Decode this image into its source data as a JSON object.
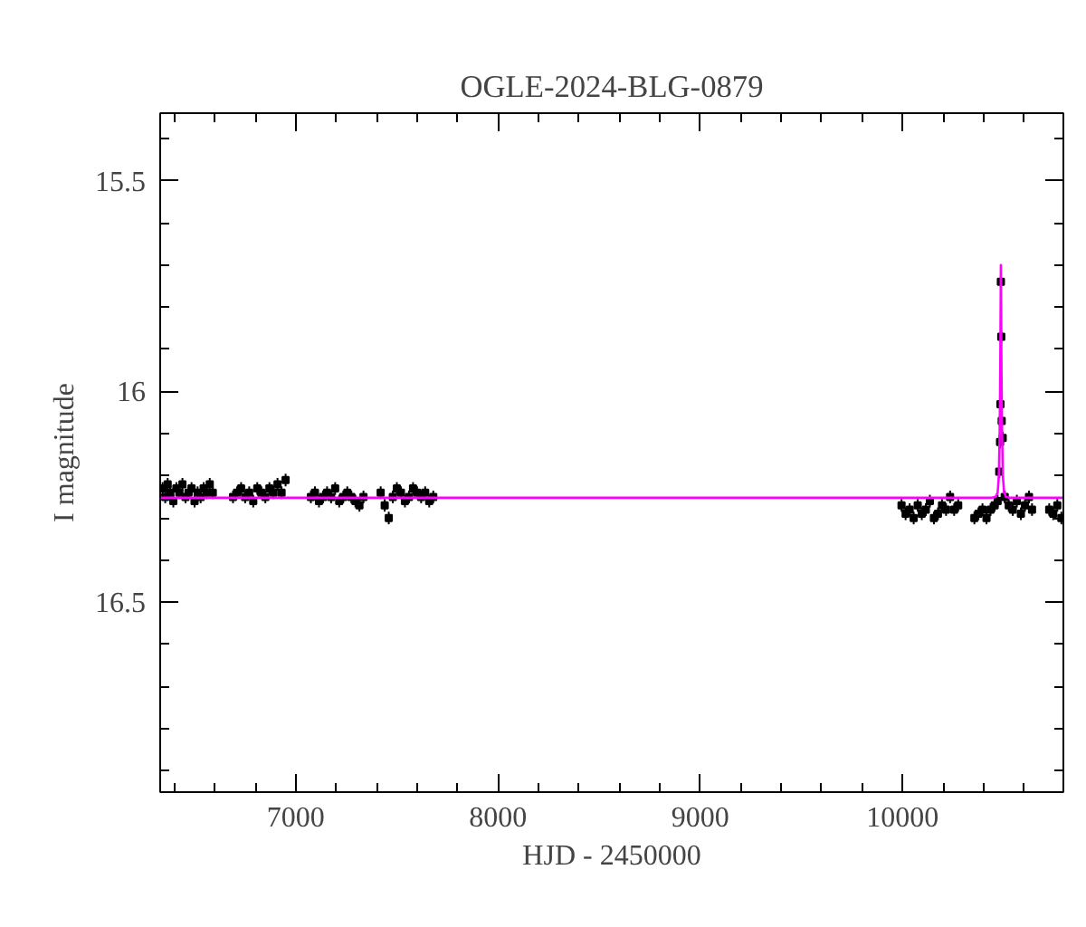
{
  "chart_data": {
    "type": "scatter",
    "title": "OGLE-2024-BLG-0879",
    "xlabel": "HJD - 2450000",
    "ylabel": "I magnitude",
    "xlim": [
      6330,
      10795
    ],
    "ylim": [
      16.95,
      15.34
    ],
    "xticks": [
      {
        "value": 6400,
        "label": null
      },
      {
        "value": 6600,
        "label": null
      },
      {
        "value": 6800,
        "label": null
      },
      7000,
      {
        "value": 7200,
        "label": null
      },
      {
        "value": 7400,
        "label": null
      },
      {
        "value": 7600,
        "label": null
      },
      {
        "value": 7800,
        "label": null
      },
      8000,
      {
        "value": 8200,
        "label": null
      },
      {
        "value": 8400,
        "label": null
      },
      {
        "value": 8600,
        "label": null
      },
      {
        "value": 8800,
        "label": null
      },
      9000,
      {
        "value": 9200,
        "label": null
      },
      {
        "value": 9400,
        "label": null
      },
      {
        "value": 9600,
        "label": null
      },
      {
        "value": 9800,
        "label": null
      },
      10000,
      {
        "value": 10200,
        "label": null
      },
      {
        "value": 10400,
        "label": null
      },
      {
        "value": 10600,
        "label": null
      }
    ],
    "yticks": [
      {
        "value": 15.4,
        "label": null
      },
      15.5,
      {
        "value": 15.6,
        "label": null
      },
      {
        "value": 15.7,
        "label": null
      },
      {
        "value": 15.8,
        "label": null
      },
      {
        "value": 15.9,
        "label": null
      },
      16,
      {
        "value": 16.1,
        "label": null
      },
      {
        "value": 16.2,
        "label": null
      },
      {
        "value": 16.3,
        "label": null
      },
      {
        "value": 16.4,
        "label": null
      },
      16.5,
      {
        "value": 16.6,
        "label": null
      },
      {
        "value": 16.7,
        "label": null
      },
      {
        "value": 16.8,
        "label": null
      },
      {
        "value": 16.9,
        "label": null
      }
    ],
    "series": [
      {
        "color": "#000000",
        "marker": "square",
        "x": [
          6342,
          6355,
          6367,
          6380,
          6395,
          6410,
          6425,
          6440,
          6455,
          6470,
          6485,
          6500,
          6515,
          6530,
          6545,
          6560,
          6575,
          6590,
          6690,
          6710,
          6730,
          6750,
          6770,
          6790,
          6810,
          6830,
          6850,
          6870,
          6890,
          6910,
          6930,
          6950,
          7075,
          7095,
          7115,
          7135,
          7155,
          7175,
          7195,
          7215,
          7235,
          7255,
          7275,
          7295,
          7315,
          7335,
          7420,
          7440,
          7460,
          7480,
          7500,
          7520,
          7540,
          7560,
          7580,
          7600,
          7620,
          7640,
          7660,
          7680,
          9995,
          10015,
          10035,
          10055,
          10075,
          10095,
          10115,
          10135,
          10155,
          10175,
          10195,
          10215,
          10235,
          10255,
          10275,
          10355,
          10375,
          10395,
          10415,
          10435,
          10455,
          10470,
          10478,
          10482,
          10484,
          10486,
          10488,
          10490,
          10495,
          10505,
          10525,
          10545,
          10565,
          10585,
          10605,
          10625,
          10640,
          10725,
          10745,
          10765,
          10785
        ],
        "values": [
          16.23,
          16.25,
          16.22,
          16.24,
          16.26,
          16.23,
          16.24,
          16.22,
          16.25,
          16.24,
          16.23,
          16.26,
          16.24,
          16.25,
          16.23,
          16.24,
          16.22,
          16.24,
          16.25,
          16.24,
          16.23,
          16.25,
          16.24,
          16.26,
          16.23,
          16.24,
          16.25,
          16.23,
          16.24,
          16.22,
          16.24,
          16.21,
          16.25,
          16.24,
          16.26,
          16.25,
          16.24,
          16.25,
          16.23,
          16.26,
          16.25,
          16.24,
          16.25,
          16.26,
          16.27,
          16.25,
          16.24,
          16.27,
          16.3,
          16.25,
          16.23,
          16.24,
          16.26,
          16.25,
          16.23,
          16.24,
          16.25,
          16.24,
          16.26,
          16.25,
          16.27,
          16.29,
          16.28,
          16.3,
          16.27,
          16.29,
          16.28,
          16.26,
          16.3,
          16.29,
          16.27,
          16.28,
          16.25,
          16.28,
          16.27,
          16.3,
          16.29,
          16.28,
          16.3,
          16.28,
          16.27,
          16.26,
          16.19,
          16.12,
          16.03,
          15.74,
          15.87,
          16.07,
          16.11,
          16.25,
          16.27,
          16.28,
          16.26,
          16.29,
          16.27,
          16.25,
          16.28,
          16.28,
          16.29,
          16.27,
          16.3
        ],
        "errors": [
          0.015,
          0.015,
          0.015,
          0.015,
          0.015,
          0.015,
          0.015,
          0.015,
          0.015,
          0.015,
          0.015,
          0.015,
          0.015,
          0.015,
          0.015,
          0.015,
          0.015,
          0.015,
          0.015,
          0.015,
          0.015,
          0.015,
          0.015,
          0.015,
          0.015,
          0.015,
          0.015,
          0.015,
          0.015,
          0.015,
          0.015,
          0.015,
          0.015,
          0.015,
          0.015,
          0.015,
          0.015,
          0.015,
          0.015,
          0.015,
          0.015,
          0.015,
          0.015,
          0.015,
          0.015,
          0.015,
          0.015,
          0.015,
          0.015,
          0.015,
          0.015,
          0.015,
          0.015,
          0.015,
          0.015,
          0.015,
          0.015,
          0.015,
          0.015,
          0.015,
          0.015,
          0.015,
          0.015,
          0.015,
          0.015,
          0.015,
          0.015,
          0.015,
          0.015,
          0.015,
          0.015,
          0.015,
          0.015,
          0.015,
          0.015,
          0.015,
          0.015,
          0.015,
          0.015,
          0.015,
          0.015,
          0.015,
          0.015,
          0.015,
          0.015,
          0.015,
          0.015,
          0.015,
          0.015,
          0.015,
          0.015,
          0.015,
          0.015,
          0.015,
          0.015,
          0.015,
          0.015,
          0.015,
          0.015,
          0.015,
          0.015
        ]
      },
      {
        "type": "line",
        "color": "#ff00ff",
        "line_style": "solid",
        "marker": "none",
        "x": [
          6330,
          10440,
          10460,
          10470,
          10476,
          10480,
          10483,
          10486,
          10489,
          10492,
          10496,
          10502,
          10512,
          10530,
          10795
        ],
        "values": [
          16.252,
          16.252,
          16.25,
          16.24,
          16.2,
          16.1,
          15.95,
          15.7,
          15.95,
          16.1,
          16.2,
          16.24,
          16.25,
          16.252,
          16.252
        ]
      }
    ]
  }
}
